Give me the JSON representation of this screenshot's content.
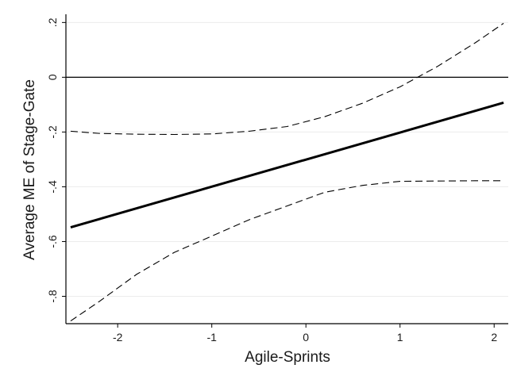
{
  "chart_data": {
    "type": "line",
    "title": "",
    "xlabel": "Agile-Sprints",
    "ylabel": "Average ME of Stage-Gate",
    "xlim": [
      -2.55,
      2.15
    ],
    "ylim": [
      -0.9,
      0.23
    ],
    "xticks": [
      {
        "value": -2,
        "label": "-2"
      },
      {
        "value": -1,
        "label": "-1"
      },
      {
        "value": 0,
        "label": "0"
      },
      {
        "value": 1,
        "label": "1"
      },
      {
        "value": 2,
        "label": "2"
      }
    ],
    "yticks": [
      {
        "value": -0.8,
        "label": "-.8"
      },
      {
        "value": -0.6,
        "label": "-.6"
      },
      {
        "value": -0.4,
        "label": "-.4"
      },
      {
        "value": -0.2,
        "label": "-.2"
      },
      {
        "value": 0,
        "label": "0"
      },
      {
        "value": 0.2,
        "label": ".2"
      }
    ],
    "grid": "horizontal",
    "reference_line": {
      "y": 0,
      "color": "#000000"
    },
    "series": [
      {
        "role": "estimate",
        "style": "solid",
        "color": "#000000",
        "x": [
          -2.5,
          2.1
        ],
        "y": [
          -0.548,
          -0.093
        ]
      },
      {
        "role": "upper_ci",
        "style": "dashed",
        "color": "#000000",
        "x": [
          -2.5,
          -2.2,
          -1.8,
          -1.4,
          -1.0,
          -0.6,
          -0.2,
          0.2,
          0.6,
          1.0,
          1.4,
          1.8,
          2.1
        ],
        "y": [
          -0.197,
          -0.205,
          -0.208,
          -0.209,
          -0.207,
          -0.197,
          -0.18,
          -0.144,
          -0.095,
          -0.035,
          0.04,
          0.126,
          0.197
        ]
      },
      {
        "role": "lower_ci",
        "style": "dashed",
        "color": "#000000",
        "x": [
          -2.5,
          -2.2,
          -1.8,
          -1.4,
          -1.0,
          -0.6,
          -0.2,
          0.2,
          0.6,
          1.0,
          1.4,
          1.8,
          2.1
        ],
        "y": [
          -0.89,
          -0.82,
          -0.72,
          -0.64,
          -0.58,
          -0.52,
          -0.47,
          -0.42,
          -0.395,
          -0.38,
          -0.379,
          -0.378,
          -0.378
        ]
      }
    ]
  }
}
